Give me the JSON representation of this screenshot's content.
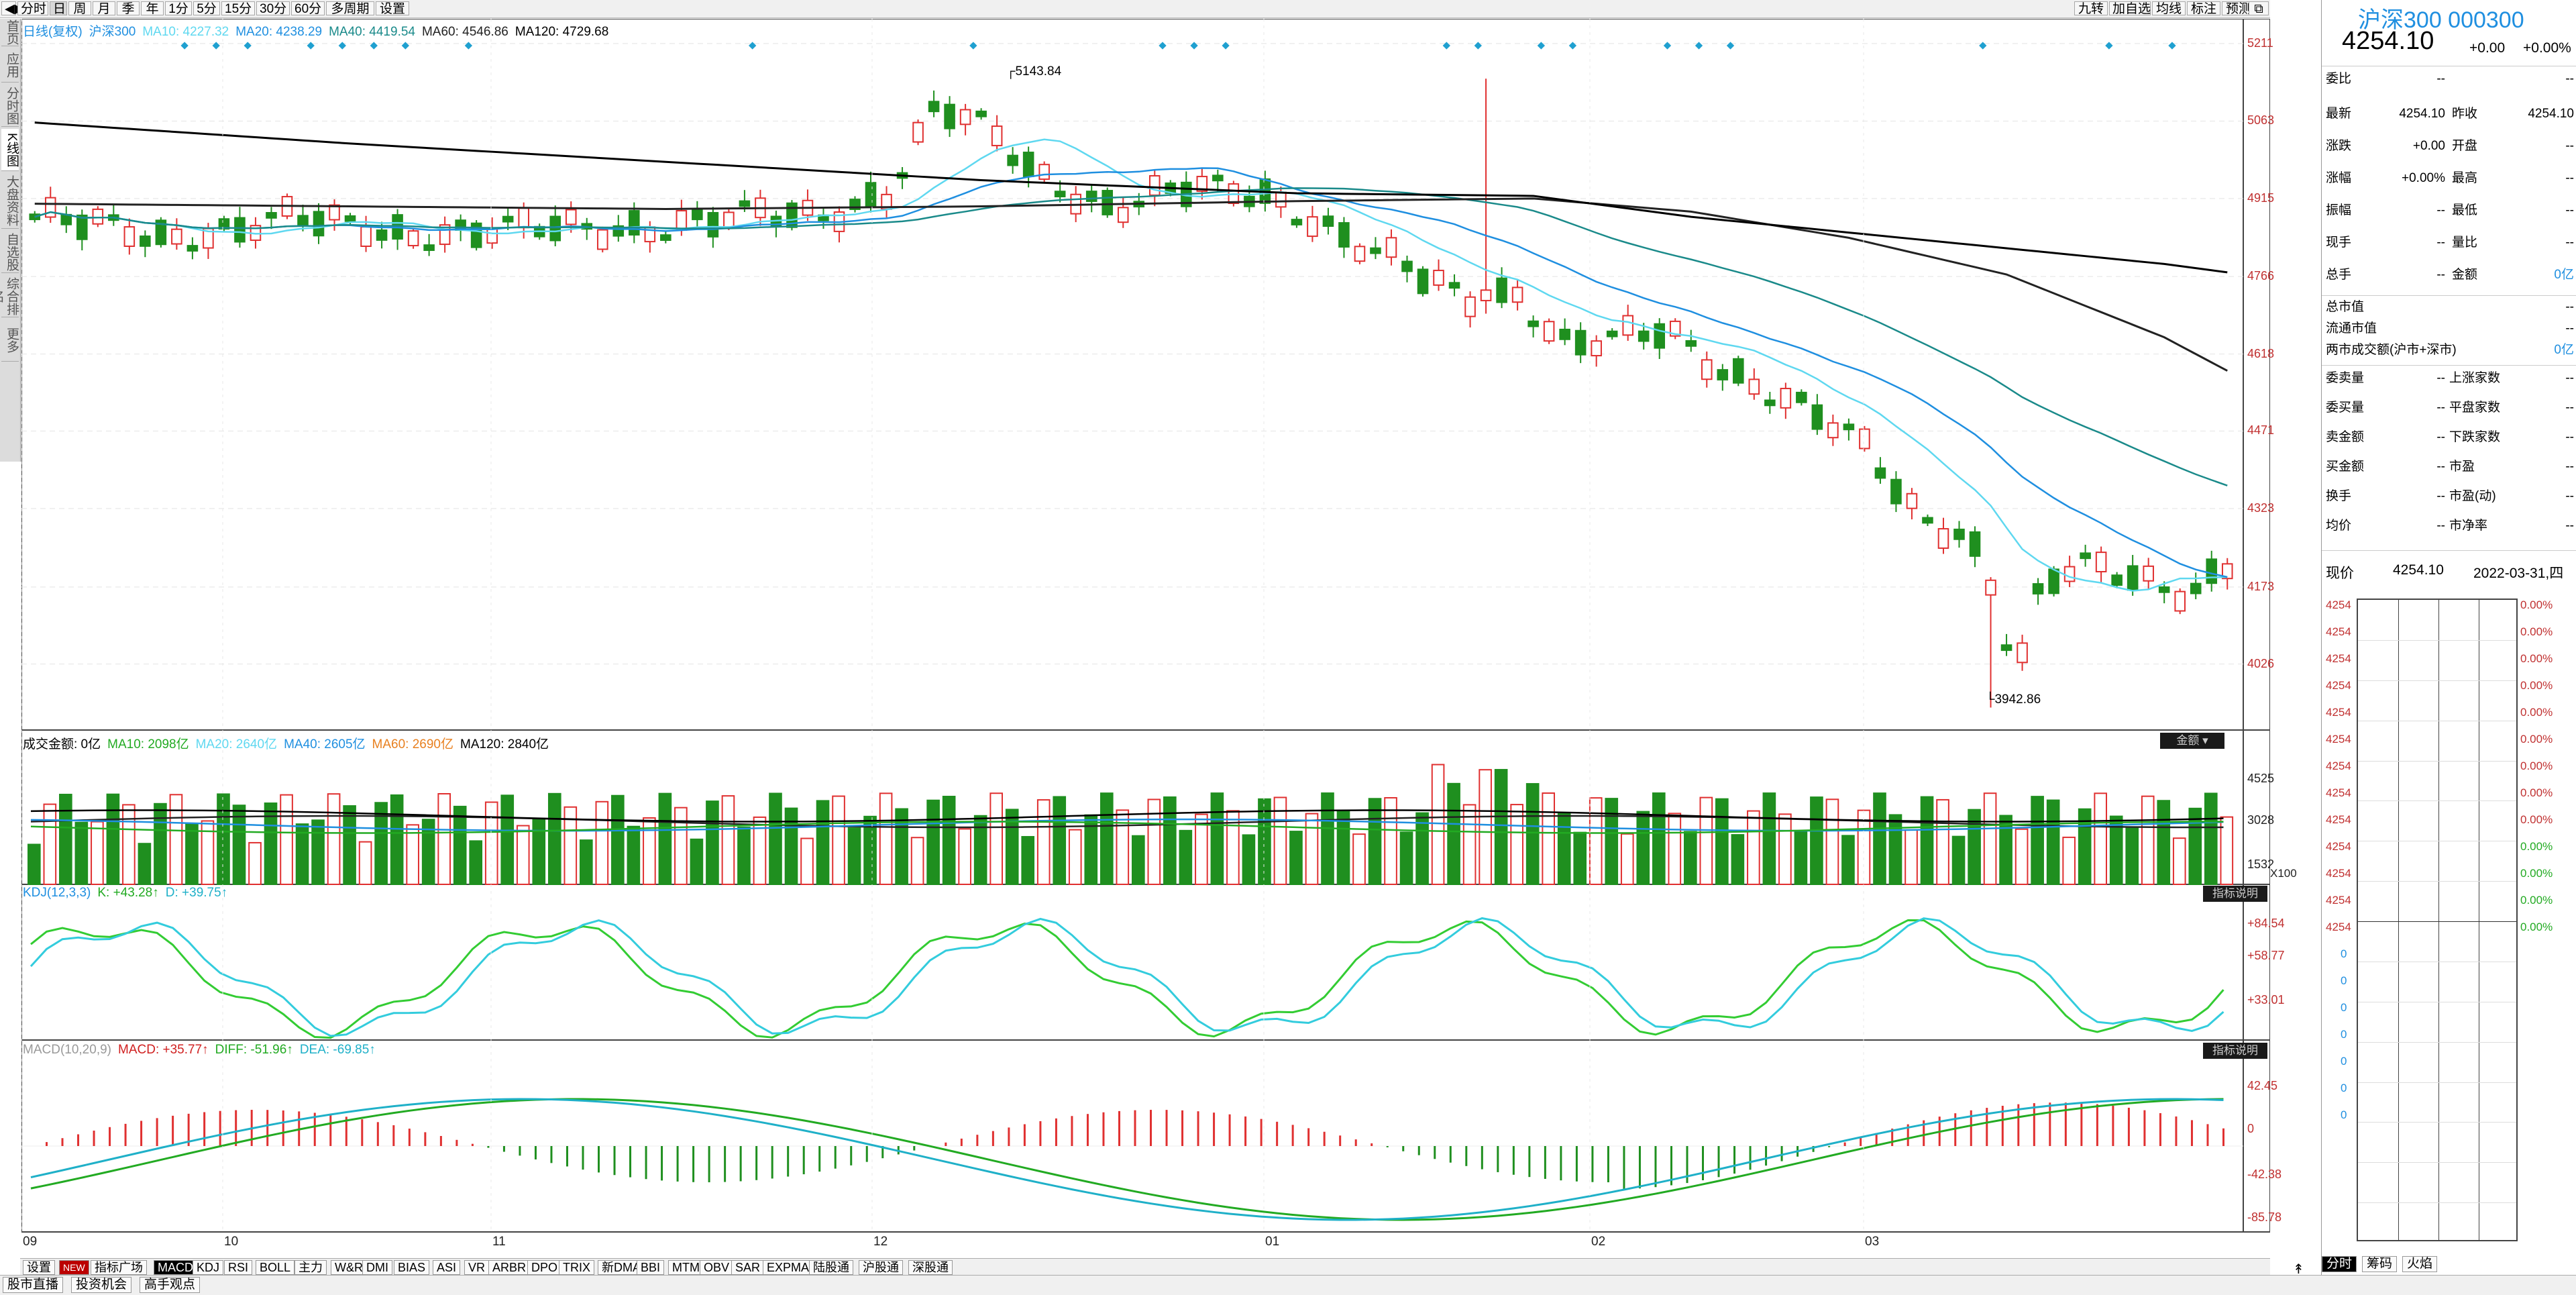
{
  "toolbar": {
    "left": [
      "分时",
      "日",
      "周",
      "月",
      "季",
      "年",
      "1分",
      "5分",
      "15分",
      "30分",
      "60分",
      "多周期",
      "设置"
    ],
    "selected": "日",
    "right": [
      "九转",
      "加自选",
      "均线",
      "标注",
      "预测"
    ]
  },
  "leftnav": [
    "首页",
    "应用",
    "分时图",
    "K线图",
    "大盘资料",
    "自选股",
    "综合排名",
    "更多"
  ],
  "leftnav_active": "K线图",
  "main_legend": {
    "prefix": "日线(复权)",
    "name": "沪深300",
    "ma10": "MA10: 4227.32",
    "ma20": "MA20: 4238.29",
    "ma40": "MA40: 4419.54",
    "ma60": "MA60: 4546.86",
    "ma120": "MA120: 4729.68"
  },
  "main_yticks": [
    "5211",
    "5063",
    "4915",
    "4766",
    "4618",
    "4471",
    "4323",
    "4173",
    "4026"
  ],
  "annotations": {
    "high": "5143.84",
    "low": "3942.86"
  },
  "vol_legend": {
    "label": "成交金额: 0亿",
    "ma10": "MA10: 2098亿",
    "ma20": "MA20: 2640亿",
    "ma40": "MA40: 2605亿",
    "ma60": "MA60: 2690亿",
    "ma120": "MA120: 2840亿",
    "btn": "金额"
  },
  "vol_yticks": [
    "4525",
    "3028",
    "1532"
  ],
  "vol_unit": "X100",
  "kdj_legend": {
    "label": "KDJ(12,3,3)",
    "k": "K: +43.28↑",
    "d": "D: +39.75↑",
    "btn": "指标说明"
  },
  "kdj_yticks": [
    "+84.54",
    "+58.77",
    "+33.01"
  ],
  "macd_legend": {
    "label": "MACD(10,20,9)",
    "macd": "MACD: +35.77↑",
    "diff": "DIFF: -51.96↑",
    "dea": "DEA: -69.85↑",
    "btn": "指标说明"
  },
  "macd_yticks": [
    "42.45",
    "0",
    "-42.38",
    "-85.78"
  ],
  "x_labels": [
    "09",
    "10",
    "11",
    "12",
    "01",
    "02",
    "03"
  ],
  "bottom_tabs": [
    "设置",
    "NEW",
    "指标广场",
    "MACD",
    "KDJ",
    "RSI",
    "BOLL",
    "主力",
    "W&R",
    "DMI",
    "BIAS",
    "ASI",
    "VR",
    "ARBR",
    "DPO",
    "TRIX",
    "新DMA",
    "BBI",
    "MTM",
    "OBV",
    "SAR",
    "EXPMA",
    "陆股通",
    "沪股通",
    "深股通"
  ],
  "bottom_selected": "MACD",
  "status_buttons": [
    "股市直播",
    "投资机会",
    "高手观点"
  ],
  "right_panel": {
    "title": "沪深300 000300",
    "price": "4254.10",
    "change": "+0.00",
    "change_pct": "+0.00%",
    "rows": [
      {
        "l": "委比",
        "v": "--",
        "l2": "",
        "v2": "--"
      },
      {
        "l": "最新",
        "v": "4254.10",
        "l2": "昨收",
        "v2": "4254.10"
      },
      {
        "l": "涨跌",
        "v": "+0.00",
        "l2": "开盘",
        "v2": "--"
      },
      {
        "l": "涨幅",
        "v": "+0.00%",
        "l2": "最高",
        "v2": "--"
      },
      {
        "l": "振幅",
        "v": "--",
        "l2": "最低",
        "v2": "--"
      },
      {
        "l": "现手",
        "v": "--",
        "l2": "量比",
        "v2": "--"
      },
      {
        "l": "总手",
        "v": "--",
        "l2": "金额",
        "v2": "0亿"
      }
    ],
    "rows2": [
      {
        "l": "总市值",
        "v": "--"
      },
      {
        "l": "流通市值",
        "v": "--"
      },
      {
        "l": "两市成交额(沪市+深市)",
        "v": "0亿"
      }
    ],
    "rows3": [
      {
        "l": "委卖量",
        "v": "--",
        "l2": "上涨家数",
        "v2": "--"
      },
      {
        "l": "委买量",
        "v": "--",
        "l2": "平盘家数",
        "v2": "--"
      },
      {
        "l": "卖金额",
        "v": "--",
        "l2": "下跌家数",
        "v2": "--"
      },
      {
        "l": "买金额",
        "v": "--",
        "l2": "市盈",
        "v2": "--"
      },
      {
        "l": "换手",
        "v": "--",
        "l2": "市盈(动)",
        "v2": "--"
      },
      {
        "l": "均价",
        "v": "--",
        "l2": "市净率",
        "v2": "--"
      }
    ],
    "now_label": "现价",
    "now_price": "4254.10",
    "now_date": "2022-03-31,四",
    "grid_price": "4254",
    "grid_pct": "0.00%",
    "grid_zero": "0",
    "tabs": [
      "分时",
      "筹码",
      "火焰"
    ]
  },
  "colors": {
    "up": "#e03030",
    "down": "#1f8f1f",
    "ma10": "#5fd8f0",
    "ma20": "#1f8fe0",
    "ma40": "#1a8a8a",
    "ma60": "#222222",
    "ma120": "#000000",
    "k": "#33cc33",
    "d": "#33ccdd"
  },
  "chart_data": {
    "type": "candlestick",
    "title": "沪深300",
    "ylim": [
      3900,
      5230
    ],
    "candles": []
  }
}
